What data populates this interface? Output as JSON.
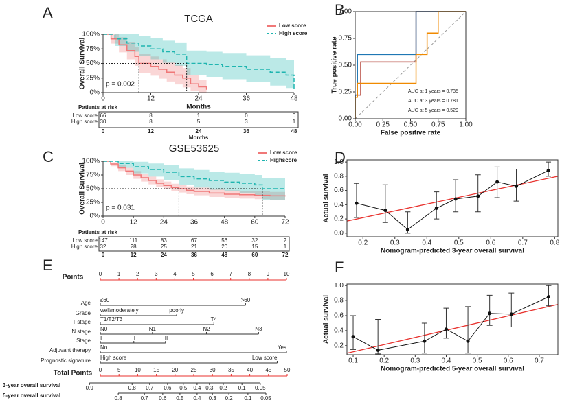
{
  "chart_data": [
    {
      "type": "survival",
      "panel_label": "A",
      "title": "TCGA",
      "ylabel": "Overall Survival",
      "xlabel": "Months",
      "p_text": "p = 0.002",
      "xlim": [
        0,
        48
      ],
      "xticks": [
        0,
        12,
        24,
        36,
        48
      ],
      "ylim": [
        0,
        100
      ],
      "yticks": [
        {
          "value": 0,
          "label": "0%"
        },
        {
          "value": 25,
          "label": "25%"
        },
        {
          "value": 50,
          "label": "50%"
        },
        {
          "value": 75,
          "label": "75%"
        },
        {
          "value": 100,
          "label": "100%"
        }
      ],
      "median_level": 50,
      "series": [
        {
          "name": "Low score",
          "color": "#f07878",
          "line_style": "solid",
          "median": 9,
          "x": [
            0,
            2,
            4,
            6,
            8,
            9,
            12,
            14,
            16,
            18,
            20,
            22,
            24,
            26
          ],
          "values": [
            100,
            92,
            82,
            72,
            62,
            50,
            45,
            40,
            35,
            30,
            25,
            15,
            10,
            5
          ],
          "upper": [
            100,
            100,
            95,
            87,
            78,
            67,
            62,
            57,
            52,
            47,
            42,
            30,
            22,
            15
          ],
          "lower": [
            100,
            84,
            69,
            57,
            46,
            34,
            29,
            24,
            19,
            14,
            9,
            3,
            0,
            0
          ]
        },
        {
          "name": "High score",
          "color": "#1fb5b0",
          "line_style": "dashed",
          "median": 21,
          "x": [
            0,
            3,
            6,
            9,
            12,
            15,
            18,
            21,
            26,
            30,
            36,
            42,
            46,
            48
          ],
          "values": [
            100,
            92,
            85,
            80,
            75,
            70,
            66,
            50,
            48,
            45,
            40,
            35,
            30,
            5
          ],
          "upper": [
            100,
            100,
            100,
            97,
            93,
            89,
            86,
            72,
            70,
            68,
            64,
            60,
            56,
            30
          ],
          "lower": [
            100,
            80,
            70,
            63,
            57,
            51,
            46,
            30,
            27,
            23,
            18,
            12,
            8,
            0
          ]
        }
      ],
      "risk_table": {
        "title": "Patients at risk",
        "xlabel": "Months",
        "rows": [
          {
            "name": "Low score",
            "color": "#f07878",
            "values": [
              66,
              8,
              1,
              0,
              0
            ]
          },
          {
            "name": "High score",
            "color": "#1fb5b0",
            "values": [
              30,
              8,
              5,
              3,
              1
            ]
          }
        ]
      }
    },
    {
      "type": "roc",
      "panel_label": "B",
      "xlabel": "False positive rate",
      "ylabel": "True positive rate",
      "xlim": [
        0,
        1
      ],
      "ylim": [
        0,
        1
      ],
      "xticks": [
        {
          "value": 0,
          "label": "0.00"
        },
        0.25,
        {
          "value": 0.5,
          "label": "0.50"
        },
        0.75,
        {
          "value": 1,
          "label": "1.00"
        }
      ],
      "yticks": [
        {
          "value": 0,
          "label": "0.00"
        },
        0.25,
        {
          "value": 0.5,
          "label": "0.50"
        },
        0.75,
        {
          "value": 1,
          "label": "1.00"
        }
      ],
      "series": [
        {
          "name": "AUC at 1 years = 0.735",
          "color": "#b03a2e",
          "x": [
            0,
            0,
            0.05,
            0.05,
            0.55,
            0.55,
            1
          ],
          "values": [
            0,
            0.22,
            0.22,
            0.53,
            0.53,
            1,
            1
          ]
        },
        {
          "name": "AUC at 3 years = 0.781",
          "color": "#1f77b4",
          "x": [
            0,
            0,
            0.02,
            0.02,
            0.55,
            0.55,
            1
          ],
          "values": [
            0,
            0.22,
            0.22,
            0.6,
            0.6,
            1,
            1
          ]
        },
        {
          "name": "AUC at 5 years = 0.529",
          "color": "#f08a00",
          "x": [
            0,
            0,
            0.02,
            0.02,
            0.55,
            0.55,
            0.65,
            0.65,
            0.75,
            0.75,
            1
          ],
          "values": [
            0,
            0.2,
            0.2,
            0.33,
            0.33,
            0.6,
            0.6,
            0.8,
            0.8,
            1,
            1
          ]
        }
      ]
    },
    {
      "type": "survival",
      "panel_label": "C",
      "title": "GSE53625",
      "ylabel": "Overall Survival",
      "p_text": "p = 0.031",
      "xlim": [
        0,
        72
      ],
      "xticks": [
        0,
        12,
        24,
        36,
        48,
        60,
        72
      ],
      "ylim": [
        0,
        100
      ],
      "yticks": [
        {
          "value": 0,
          "label": "0%"
        },
        {
          "value": 25,
          "label": "25%"
        },
        {
          "value": 50,
          "label": "50%"
        },
        {
          "value": 75,
          "label": "75%"
        },
        {
          "value": 100,
          "label": "100%"
        }
      ],
      "median_level": 50,
      "series": [
        {
          "name": "Low score",
          "color": "#f07878",
          "line_style": "solid",
          "median": 30,
          "x": [
            0,
            3,
            6,
            9,
            12,
            15,
            18,
            21,
            24,
            27,
            30,
            33,
            36,
            42,
            48,
            54,
            60,
            66,
            72
          ],
          "values": [
            100,
            95,
            88,
            82,
            75,
            70,
            65,
            60,
            56,
            52,
            50,
            47,
            45,
            42,
            40,
            39,
            38,
            37,
            36
          ],
          "upper": [
            100,
            98,
            93,
            88,
            82,
            77,
            72,
            67,
            63,
            59,
            57,
            54,
            52,
            49,
            47,
            46,
            45,
            44,
            43
          ],
          "lower": [
            100,
            91,
            82,
            75,
            68,
            63,
            58,
            53,
            49,
            45,
            43,
            40,
            38,
            35,
            33,
            32,
            31,
            30,
            29
          ]
        },
        {
          "name": "Highscore",
          "color": "#1fb5b0",
          "line_style": "dashed",
          "median": 63,
          "x": [
            0,
            6,
            12,
            18,
            24,
            30,
            36,
            42,
            48,
            54,
            60,
            63,
            72
          ],
          "values": [
            100,
            96,
            90,
            85,
            80,
            72,
            68,
            65,
            62,
            60,
            57,
            50,
            50
          ],
          "upper": [
            100,
            100,
            99,
            96,
            93,
            87,
            84,
            81,
            79,
            77,
            75,
            70,
            70
          ],
          "lower": [
            100,
            88,
            78,
            72,
            65,
            57,
            52,
            48,
            45,
            42,
            38,
            30,
            30
          ]
        }
      ],
      "risk_table": {
        "title": "Patients at risk",
        "rows": [
          {
            "name": "Low score",
            "color": "#f07878",
            "values": [
              147,
              111,
              83,
              67,
              56,
              32,
              2
            ]
          },
          {
            "name": "High score",
            "color": "#1fb5b0",
            "values": [
              32,
              28,
              25,
              21,
              20,
              15,
              1
            ]
          }
        ]
      }
    },
    {
      "type": "calibration",
      "panel_label": "D",
      "xlabel": "Nomogram-predicted 3-year overall survival",
      "ylabel": "Actual survival",
      "xlim": [
        0.15,
        0.81
      ],
      "ylim": [
        -0.05,
        1.03
      ],
      "xticks": [
        0.2,
        0.3,
        0.4,
        0.5,
        0.6,
        0.7,
        0.8
      ],
      "yticks": [
        {
          "value": 0,
          "label": "0.0"
        },
        0.2,
        0.4,
        0.6,
        0.8,
        {
          "value": 1,
          "label": "1.0"
        }
      ],
      "fit_color": "#e8322e",
      "fit_x": [
        0.15,
        0.81
      ],
      "fit_y": [
        0.17,
        0.8
      ],
      "x": [
        0.18,
        0.27,
        0.34,
        0.43,
        0.49,
        0.56,
        0.62,
        0.68,
        0.78
      ],
      "values": [
        0.42,
        0.32,
        0.05,
        0.35,
        0.48,
        0.52,
        0.72,
        0.66,
        0.88
      ],
      "lower": [
        0.22,
        0.15,
        0,
        0.2,
        0.3,
        0.3,
        0.5,
        0.45,
        0.8
      ],
      "upper": [
        0.7,
        0.68,
        0.3,
        0.58,
        0.75,
        0.82,
        0.93,
        0.9,
        1.0
      ]
    },
    {
      "type": "nomogram",
      "panel_label": "E",
      "points_label": "Points",
      "points_lim": [
        0,
        10
      ],
      "points_ticks": [
        0,
        1,
        2,
        3,
        4,
        5,
        6,
        7,
        8,
        9,
        10
      ],
      "rows": [
        {
          "name": "Age",
          "levels": [
            {
              "value": 0,
              "label": "≤60"
            },
            {
              "value": 7.8,
              "label": ">60"
            }
          ]
        },
        {
          "name": "Grade",
          "levels": [
            {
              "value": 0,
              "label": "well/moderately"
            },
            {
              "value": 4.1,
              "label": "poorly"
            }
          ]
        },
        {
          "name": "T stage",
          "levels": [
            {
              "value": 0,
              "label": "T1/T2/T3"
            },
            {
              "value": 6.1,
              "label": "T4"
            }
          ]
        },
        {
          "name": "N stage",
          "levels": [
            {
              "value": 0,
              "label": "N0"
            },
            {
              "value": 2.8,
              "label": "N1"
            },
            {
              "value": 5.7,
              "label": "N2"
            },
            {
              "value": 8.5,
              "label": "N3"
            }
          ]
        },
        {
          "name": "Stage",
          "levels": [
            {
              "value": 0,
              "label": "I"
            },
            {
              "value": 1.8,
              "label": "II"
            },
            {
              "value": 3.5,
              "label": "III"
            }
          ]
        },
        {
          "name": "Adjuvant therapy",
          "levels": [
            {
              "value": 0,
              "label": "No"
            },
            {
              "value": 10,
              "label": "Yes"
            }
          ]
        },
        {
          "name": "Prognostic signature",
          "levels": [
            {
              "value": 0,
              "label": "High score"
            },
            {
              "value": 9.5,
              "label": "Low score"
            }
          ]
        }
      ],
      "total_label": "Total Points",
      "total_lim": [
        0,
        50
      ],
      "total_ticks": [
        0,
        5,
        10,
        15,
        20,
        25,
        30,
        35,
        40,
        45,
        50
      ],
      "outcomes": [
        {
          "name": "3-year overall survival",
          "ticks": [
            {
              "value": -2.9,
              "label": "0.9"
            },
            {
              "value": 8.5,
              "label": "0.8"
            },
            {
              "value": 13.2,
              "label": "0.7"
            },
            {
              "value": 18.0,
              "label": "0.6"
            },
            {
              "value": 22.2,
              "label": "0.5"
            },
            {
              "value": 25.9,
              "label": "0.4"
            },
            {
              "value": 29.2,
              "label": "0.3"
            },
            {
              "value": 32.9,
              "label": "0.2"
            },
            {
              "value": 37.9,
              "label": "0.1"
            },
            {
              "value": 42.8,
              "label": "0.05"
            }
          ]
        },
        {
          "name": "5-year overall survival",
          "ticks": [
            {
              "value": 4.8,
              "label": "0.8"
            },
            {
              "value": 11.8,
              "label": "0.7"
            },
            {
              "value": 16.7,
              "label": "0.6"
            },
            {
              "value": 21.3,
              "label": "0.5"
            },
            {
              "value": 25.9,
              "label": "0.4"
            },
            {
              "value": 30.0,
              "label": "0.3"
            },
            {
              "value": 34.4,
              "label": "0.2"
            },
            {
              "value": 39.5,
              "label": "0.1"
            },
            {
              "value": 44.3,
              "label": "0.05"
            }
          ]
        }
      ]
    },
    {
      "type": "calibration",
      "panel_label": "F",
      "xlabel": "Nomogram-predicted 5-year overall survival",
      "ylabel": "Actual survival",
      "xlim": [
        0.08,
        0.76
      ],
      "ylim": [
        0.08,
        1.02
      ],
      "xticks": [
        0.1,
        0.2,
        0.3,
        0.4,
        0.5,
        0.6,
        0.7
      ],
      "yticks": [
        0.2,
        0.4,
        0.6,
        0.8,
        {
          "value": 1,
          "label": "1.0"
        }
      ],
      "fit_color": "#e8322e",
      "fit_x": [
        0.08,
        0.76
      ],
      "fit_y": [
        0.1,
        0.75
      ],
      "x": [
        0.1,
        0.18,
        0.33,
        0.4,
        0.47,
        0.54,
        0.61,
        0.73
      ],
      "values": [
        0.32,
        0.14,
        0.26,
        0.42,
        0.26,
        0.63,
        0.62,
        0.85
      ],
      "lower": [
        0.15,
        0.09,
        0.1,
        0.3,
        0.1,
        0.47,
        0.45,
        0.73
      ],
      "upper": [
        0.6,
        0.55,
        0.5,
        0.7,
        0.72,
        0.87,
        0.9,
        1.0
      ]
    }
  ]
}
